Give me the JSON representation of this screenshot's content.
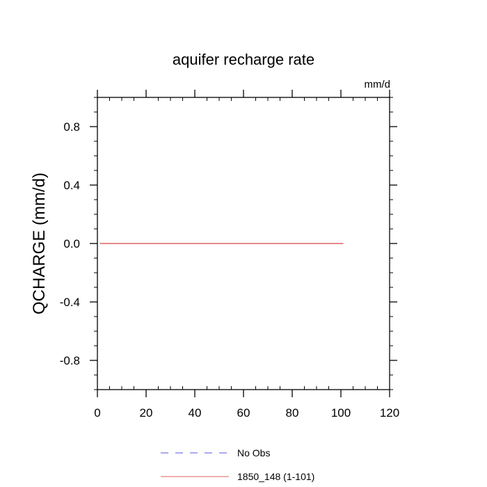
{
  "chart_data": {
    "type": "line",
    "title": "aquifer recharge rate",
    "units_label": "mm/d",
    "ylabel": "QCHARGE  (mm/d)",
    "xlabel": "",
    "xlim": [
      0,
      120
    ],
    "ylim": [
      -1,
      1
    ],
    "x_ticks": [
      0,
      20,
      40,
      60,
      80,
      100,
      120
    ],
    "x_tick_labels": [
      "0",
      "20",
      "40",
      "60",
      "80",
      "100",
      "120"
    ],
    "y_ticks": [
      -0.8,
      -0.4,
      0.0,
      0.4,
      0.8
    ],
    "y_tick_labels": [
      "-0.8",
      "-0.4",
      "0.0",
      "0.4",
      "0.8"
    ],
    "grid": false,
    "legend_position": "bottom",
    "series": [
      {
        "name": "No Obs",
        "color": "#5555dd",
        "dash": "dashed",
        "x": [],
        "y": []
      },
      {
        "name": "1850_148 (1-101)",
        "color": "#e06060",
        "dash": "solid",
        "x": [
          1,
          101
        ],
        "y": [
          0,
          0
        ]
      }
    ]
  }
}
